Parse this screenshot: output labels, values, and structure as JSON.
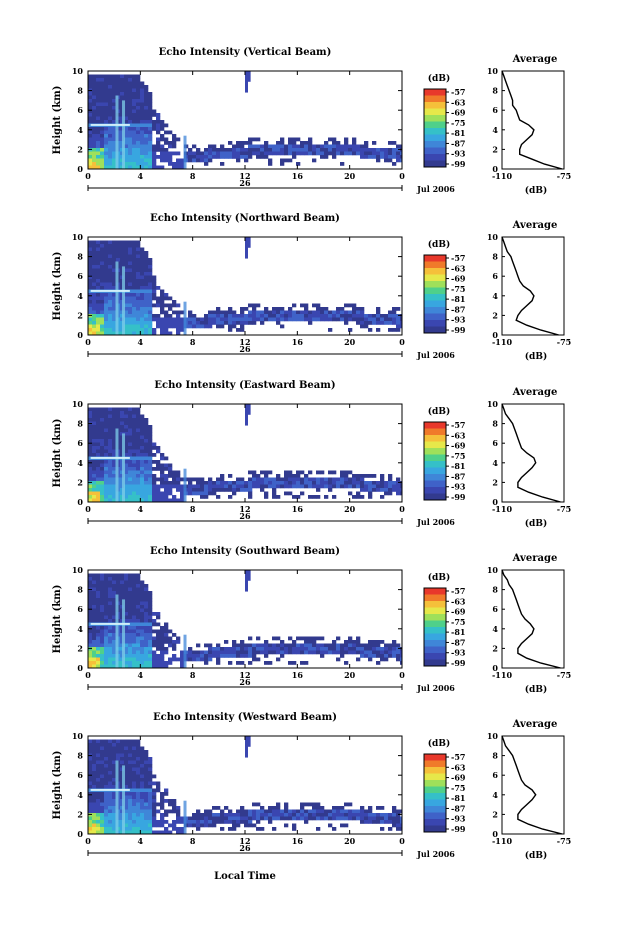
{
  "page": {
    "time_label": "Local Time"
  },
  "colorbar": {
    "unit": "(dB)",
    "ticks": [
      "-57",
      "-63",
      "-69",
      "-75",
      "-81",
      "-87",
      "-93",
      "-99"
    ],
    "colors": [
      "#e8382b",
      "#f07a2a",
      "#f5c03a",
      "#e6e84a",
      "#9fe05a",
      "#4fd08a",
      "#35c0c8",
      "#38a6e0",
      "#3f86d8",
      "#3f62c8",
      "#3a46b0",
      "#323a8e"
    ]
  },
  "chart_data": [
    {
      "type": "heatmap",
      "title": "Echo Intensity (Vertical Beam)",
      "ylabel": "Height (km)",
      "ylim": [
        0,
        10
      ],
      "xlim": [
        0,
        24
      ],
      "x_ticks": [
        "0",
        "4",
        "8",
        "12",
        "16",
        "20",
        "0"
      ],
      "y_ticks": [
        "0",
        "2",
        "4",
        "6",
        "8",
        "10"
      ],
      "date_day": "26",
      "date_month": "Jul 2006",
      "unit": "(dB)",
      "profile": {
        "title": "Average",
        "xlabel": "(dB)",
        "xlim": [
          -110,
          -75
        ],
        "x_ticks": [
          "-110",
          "-75"
        ],
        "y_ticks": [
          "0",
          "2",
          "4",
          "6",
          "8",
          "10"
        ],
        "height": [
          0,
          0.5,
          1,
          1.5,
          2,
          2.5,
          3,
          3.5,
          4,
          4.5,
          5,
          5.5,
          6,
          6.5,
          7,
          7.5,
          8,
          8.5,
          9,
          9.5,
          10
        ],
        "value": [
          -76,
          -86,
          -93,
          -100,
          -100,
          -99,
          -96,
          -93,
          -92,
          -95,
          -100,
          -101,
          -102,
          -104,
          -104,
          -105,
          -106,
          -107,
          -108,
          -109,
          -110
        ]
      }
    },
    {
      "type": "heatmap",
      "title": "Echo Intensity (Northward Beam)",
      "ylabel": "Height (km)",
      "ylim": [
        0,
        10
      ],
      "xlim": [
        0,
        24
      ],
      "x_ticks": [
        "0",
        "4",
        "8",
        "12",
        "16",
        "20",
        "0"
      ],
      "y_ticks": [
        "0",
        "2",
        "4",
        "6",
        "8",
        "10"
      ],
      "date_day": "26",
      "date_month": "Jul 2006",
      "unit": "(dB)",
      "profile": {
        "title": "Average",
        "xlabel": "(dB)",
        "xlim": [
          -110,
          -75
        ],
        "x_ticks": [
          "-110",
          "-75"
        ],
        "y_ticks": [
          "0",
          "2",
          "4",
          "6",
          "8",
          "10"
        ],
        "height": [
          0,
          0.5,
          1,
          1.5,
          2,
          2.5,
          3,
          3.5,
          4,
          4.5,
          5,
          5.5,
          6,
          6.5,
          7,
          7.5,
          8,
          8.5,
          9,
          9.5,
          10
        ],
        "value": [
          -78,
          -88,
          -96,
          -102,
          -101,
          -99,
          -96,
          -93,
          -92,
          -94,
          -98,
          -100,
          -101,
          -102,
          -103,
          -104,
          -105,
          -107,
          -108,
          -109,
          -110
        ]
      }
    },
    {
      "type": "heatmap",
      "title": "Echo Intensity (Eastward Beam)",
      "ylabel": "Height (km)",
      "ylim": [
        0,
        10
      ],
      "xlim": [
        0,
        24
      ],
      "x_ticks": [
        "0",
        "4",
        "8",
        "12",
        "16",
        "20",
        "0"
      ],
      "y_ticks": [
        "0",
        "2",
        "4",
        "6",
        "8",
        "10"
      ],
      "date_day": "26",
      "date_month": "Jul 2006",
      "unit": "(dB)",
      "profile": {
        "title": "Average",
        "xlabel": "(dB)",
        "xlim": [
          -110,
          -75
        ],
        "x_ticks": [
          "-110",
          "-75"
        ],
        "y_ticks": [
          "0",
          "2",
          "4",
          "6",
          "8",
          "10"
        ],
        "height": [
          0,
          0.5,
          1,
          1.5,
          2,
          2.5,
          3,
          3.5,
          4,
          4.5,
          5,
          5.5,
          6,
          6.5,
          7,
          7.5,
          8,
          8.5,
          9,
          9.5,
          10
        ],
        "value": [
          -77,
          -87,
          -95,
          -101,
          -101,
          -99,
          -96,
          -93,
          -91,
          -92,
          -96,
          -99,
          -100,
          -101,
          -102,
          -103,
          -104,
          -106,
          -108,
          -109,
          -110
        ]
      }
    },
    {
      "type": "heatmap",
      "title": "Echo Intensity (Southward Beam)",
      "ylabel": "Height (km)",
      "ylim": [
        0,
        10
      ],
      "xlim": [
        0,
        24
      ],
      "x_ticks": [
        "0",
        "4",
        "8",
        "12",
        "16",
        "20",
        "0"
      ],
      "y_ticks": [
        "0",
        "2",
        "4",
        "6",
        "8",
        "10"
      ],
      "date_day": "26",
      "date_month": "Jul 2006",
      "unit": "(dB)",
      "profile": {
        "title": "Average",
        "xlabel": "(dB)",
        "xlim": [
          -110,
          -75
        ],
        "x_ticks": [
          "-110",
          "-75"
        ],
        "y_ticks": [
          "0",
          "2",
          "4",
          "6",
          "8",
          "10"
        ],
        "height": [
          0,
          0.5,
          1,
          1.5,
          2,
          2.5,
          3,
          3.5,
          4,
          4.5,
          5,
          5.5,
          6,
          6.5,
          7,
          7.5,
          8,
          8.5,
          9,
          9.5,
          10
        ],
        "value": [
          -77,
          -88,
          -96,
          -101,
          -101,
          -99,
          -96,
          -93,
          -92,
          -94,
          -97,
          -99,
          -100,
          -101,
          -102,
          -103,
          -104,
          -106,
          -107,
          -109,
          -110
        ]
      }
    },
    {
      "type": "heatmap",
      "title": "Echo Intensity (Westward Beam)",
      "ylabel": "Height (km)",
      "ylim": [
        0,
        10
      ],
      "xlim": [
        0,
        24
      ],
      "x_ticks": [
        "0",
        "4",
        "8",
        "12",
        "16",
        "20",
        "0"
      ],
      "y_ticks": [
        "0",
        "2",
        "4",
        "6",
        "8",
        "10"
      ],
      "date_day": "26",
      "date_month": "Jul 2006",
      "unit": "(dB)",
      "profile": {
        "title": "Average",
        "xlabel": "(dB)",
        "xlim": [
          -110,
          -75
        ],
        "x_ticks": [
          "-110",
          "-75"
        ],
        "y_ticks": [
          "0",
          "2",
          "4",
          "6",
          "8",
          "10"
        ],
        "height": [
          0,
          0.5,
          1,
          1.5,
          2,
          2.5,
          3,
          3.5,
          4,
          4.5,
          5,
          5.5,
          6,
          6.5,
          7,
          7.5,
          8,
          8.5,
          9,
          9.5,
          10
        ],
        "value": [
          -76,
          -87,
          -95,
          -101,
          -101,
          -99,
          -96,
          -93,
          -91,
          -93,
          -97,
          -99,
          -100,
          -101,
          -102,
          -103,
          -104,
          -106,
          -108,
          -109,
          -110
        ]
      }
    }
  ]
}
